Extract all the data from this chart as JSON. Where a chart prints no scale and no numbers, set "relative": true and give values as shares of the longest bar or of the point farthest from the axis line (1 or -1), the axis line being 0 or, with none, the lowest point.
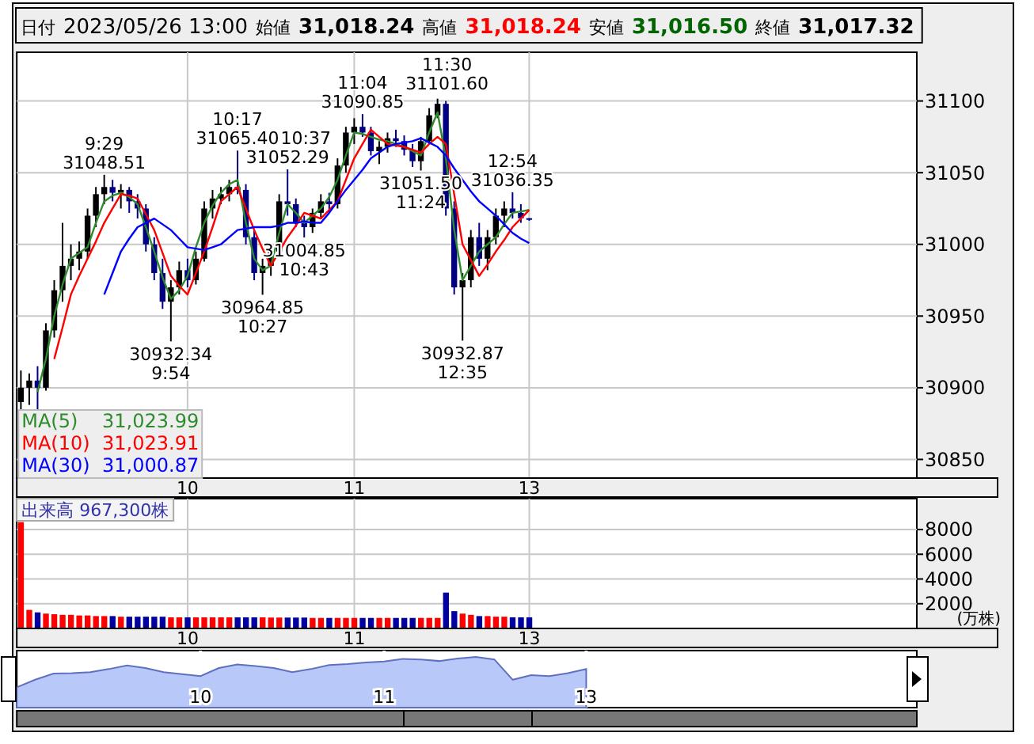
{
  "chart_data": [
    {
      "type": "candlestick",
      "categories": [
        null,
        null,
        null,
        null,
        null,
        null,
        null,
        null,
        null,
        null,
        null,
        null,
        null,
        null,
        null,
        null,
        null,
        null,
        null,
        null,
        "10",
        null,
        null,
        null,
        null,
        null,
        null,
        null,
        null,
        null,
        null,
        null,
        null,
        null,
        null,
        null,
        null,
        null,
        null,
        null,
        "11",
        null,
        null,
        null,
        null,
        null,
        null,
        null,
        null,
        null,
        null,
        null,
        null,
        null,
        null,
        null,
        null,
        null,
        null,
        null,
        null,
        "13"
      ],
      "ohlc": [
        [
          30890,
          30912,
          30885,
          30900
        ],
        [
          30900,
          30910,
          30888,
          30905
        ],
        [
          30905,
          30915,
          30884,
          30900
        ],
        [
          30900,
          30945,
          30898,
          30940
        ],
        [
          30940,
          30975,
          30935,
          30968
        ],
        [
          30968,
          31015,
          30960,
          30985
        ],
        [
          30985,
          31000,
          30975,
          30990
        ],
        [
          30990,
          31002,
          30982,
          30995
        ],
        [
          30995,
          31025,
          30990,
          31020
        ],
        [
          31020,
          31040,
          31012,
          31035
        ],
        [
          31035,
          31048.51,
          31028,
          31040
        ],
        [
          31040,
          31045,
          31030,
          31036
        ],
        [
          31036,
          31042,
          31025,
          31038
        ],
        [
          31038,
          31040,
          31022,
          31030
        ],
        [
          31030,
          31035,
          31018,
          31025
        ],
        [
          31025,
          31028,
          30995,
          31000
        ],
        [
          31000,
          31005,
          30975,
          30980
        ],
        [
          30980,
          30990,
          30955,
          30960
        ],
        [
          30960,
          30975,
          30932.34,
          30970
        ],
        [
          30970,
          30988,
          30965,
          30982
        ],
        [
          30982,
          30990,
          30970,
          30975
        ],
        [
          30975,
          30995,
          30972,
          30990
        ],
        [
          30990,
          31030,
          30988,
          31025
        ],
        [
          31025,
          31038,
          31018,
          31032
        ],
        [
          31032,
          31040,
          31028,
          31035
        ],
        [
          31035,
          31045,
          31030,
          31040
        ],
        [
          31040,
          31065.4,
          31035,
          31038
        ],
        [
          31038,
          31042,
          31000,
          31005
        ],
        [
          31005,
          31010,
          30975,
          30980
        ],
        [
          30980,
          30990,
          30964.85,
          30985
        ],
        [
          30985,
          31000,
          30978,
          30995
        ],
        [
          30995,
          31035,
          30992,
          31030
        ],
        [
          31030,
          31052.29,
          31020,
          31028
        ],
        [
          31028,
          31032,
          31012,
          31015
        ],
        [
          31015,
          31020,
          31004.85,
          31012
        ],
        [
          31012,
          31025,
          31008,
          31022
        ],
        [
          31022,
          31035,
          31018,
          31030
        ],
        [
          31030,
          31036,
          31022,
          31028
        ],
        [
          31028,
          31060,
          31025,
          31055
        ],
        [
          31055,
          31082,
          31050,
          31078
        ],
        [
          31078,
          31088,
          31070,
          31082
        ],
        [
          31082,
          31090.85,
          31075,
          31078
        ],
        [
          31078,
          31082,
          31062,
          31065
        ],
        [
          31065,
          31072,
          31056,
          31068
        ],
        [
          31068,
          31078,
          31064,
          31074
        ],
        [
          31074,
          31080,
          31068,
          31072
        ],
        [
          31072,
          31076,
          31062,
          31066
        ],
        [
          31066,
          31070,
          31054,
          31058
        ],
        [
          31058,
          31075,
          31051.5,
          31072
        ],
        [
          31072,
          31095,
          31070,
          31090
        ],
        [
          31090,
          31101.6,
          31088,
          31098
        ],
        [
          31098,
          31100,
          31020,
          31025
        ],
        [
          31025,
          31030,
          30965,
          30970
        ],
        [
          30970,
          30980,
          30932.87,
          30975
        ],
        [
          30975,
          31010,
          30970,
          31005
        ],
        [
          31005,
          31015,
          30985,
          30990
        ],
        [
          30990,
          31010,
          30982,
          31005
        ],
        [
          31005,
          31025,
          31000,
          31020
        ],
        [
          31020,
          31030,
          31012,
          31025
        ],
        [
          31025,
          31036.35,
          31018,
          31022
        ],
        [
          31022,
          31028,
          31015,
          31018.24
        ],
        [
          31018.24,
          31018.24,
          31016.5,
          31017.32
        ]
      ],
      "colors": [
        "#000000",
        "#000000",
        "#000080",
        "#000000",
        "#000000",
        "#000000",
        "#000000",
        "#000000",
        "#000000",
        "#000000",
        "#000000",
        "#000080",
        "#000000",
        "#000080",
        "#000080",
        "#000080",
        "#000080",
        "#000080",
        "#000000",
        "#000000",
        "#000080",
        "#000000",
        "#000000",
        "#000000",
        "#000000",
        "#000000",
        "#000080",
        "#000080",
        "#000080",
        "#000000",
        "#000000",
        "#000000",
        "#000080",
        "#000080",
        "#000080",
        "#000000",
        "#000000",
        "#000080",
        "#000000",
        "#000000",
        "#000000",
        "#000080",
        "#000080",
        "#000000",
        "#000000",
        "#000080",
        "#000080",
        "#000080",
        "#000000",
        "#000000",
        "#000000",
        "#000080",
        "#000080",
        "#000000",
        "#000000",
        "#000080",
        "#000000",
        "#000000",
        "#000000",
        "#000080",
        "#000080",
        "#000080"
      ],
      "series": [
        {
          "type": "line",
          "name": "MA(5)",
          "color": "#2e8b2e",
          "values": [
            null,
            null,
            30897,
            30920,
            30950,
            30972,
            30990,
            30994,
            30998,
            31015,
            31030,
            31034,
            31036,
            31033,
            31028,
            31012,
            30995,
            30977,
            30962,
            30968,
            30978,
            30998,
            31015,
            31027,
            31036,
            31042,
            31045,
            31015,
            30990,
            30982,
            30985,
            31008,
            31028,
            31022,
            31015,
            31020,
            31025,
            31033,
            31045,
            31062,
            31078,
            31077,
            31075,
            31073,
            31072,
            31070,
            31068,
            31065,
            31062,
            31078,
            31092,
            31060,
            31010,
            30975,
            30985,
            30995,
            31000,
            31005,
            31014,
            31022,
            31023,
            31023.99
          ]
        },
        {
          "type": "line",
          "name": "MA(10)",
          "color": "#ff0000",
          "values": [
            null,
            null,
            null,
            null,
            30920,
            30942,
            30965,
            30978,
            30990,
            31002,
            31015,
            31025,
            31035,
            31034,
            31032,
            31021,
            31010,
            30994,
            30978,
            30971,
            30965,
            30980,
            30995,
            31012,
            31030,
            31035,
            31040,
            31025,
            31010,
            30997,
            30985,
            30995,
            31005,
            31013,
            31022,
            31020,
            31018,
            31024,
            31030,
            31045,
            31060,
            31070,
            31080,
            31075,
            31070,
            31069,
            31068,
            31066,
            31064,
            31070,
            31075,
            31070,
            31035,
            31000,
            30989,
            30978,
            30986,
            30995,
            31003,
            31012,
            31018,
            31023.91
          ]
        },
        {
          "type": "line",
          "name": "MA(30)",
          "color": "#0000ff",
          "values": [
            null,
            null,
            null,
            null,
            null,
            null,
            null,
            null,
            null,
            null,
            30965,
            30980,
            30995,
            31004,
            31012,
            31015,
            31018,
            31014,
            31010,
            31004,
            30998,
            30997,
            30996,
            30998,
            31000,
            31005,
            31010,
            31011,
            31012,
            31012,
            31012,
            31013,
            31015,
            31015,
            31016,
            31015,
            31015,
            31022,
            31030,
            31038,
            31045,
            31052,
            31060,
            31064,
            31068,
            31070,
            31071,
            31072,
            31074,
            31071,
            31068,
            31062,
            31053,
            31045,
            31037,
            31030,
            31025,
            31020,
            31014,
            31008,
            31004,
            31000.87
          ]
        }
      ],
      "ylim": [
        30837,
        31134
      ],
      "yticks": [
        30850,
        30900,
        30950,
        31000,
        31050,
        31100
      ],
      "grid": true,
      "legend": "bottom left",
      "annotations": [
        "日付",
        "2023/05/26 13:00",
        "始値",
        "31,018.24",
        "高値",
        "31,018.24",
        "安値",
        "31,016.50",
        "終値",
        "31,017.32",
        "31,023.99",
        "31,023.91",
        "31,000.87",
        {
          "text": "9:29\n31048.51",
          "y": 31048.51
        },
        {
          "text": "10:17\n31065.40",
          "y": 31065.4
        },
        {
          "text": "10:37\n31052.29",
          "y": 31052.29
        },
        {
          "text": "11:04\n31090.85",
          "y": 31090.85
        },
        {
          "text": "11:30\n31101.60",
          "y": 31101.6
        },
        {
          "text": "12:54\n31036.35",
          "y": 31036.35
        },
        {
          "text": "30932.34\n9:54",
          "y": 30932.34
        },
        {
          "text": "30964.85\n10:27",
          "y": 30964.85
        },
        {
          "text": "31004.85\n10:43",
          "y": 31004.85
        },
        {
          "text": "31051.50\n11:24",
          "y": 31051.5
        },
        {
          "text": "30932.87\n12:35",
          "y": 30932.87
        }
      ]
    },
    {
      "type": "bar",
      "title": "出来高 967,300株",
      "ylabel": "(万株)",
      "categories": [
        null,
        null,
        null,
        null,
        null,
        null,
        null,
        null,
        null,
        null,
        null,
        null,
        null,
        null,
        null,
        null,
        null,
        null,
        null,
        null,
        "10",
        null,
        null,
        null,
        null,
        null,
        null,
        null,
        null,
        null,
        null,
        null,
        null,
        null,
        null,
        null,
        null,
        null,
        null,
        null,
        "11",
        null,
        null,
        null,
        null,
        null,
        null,
        null,
        null,
        null,
        null,
        null,
        null,
        null,
        null,
        null,
        null,
        null,
        null,
        null,
        null,
        "13",
        null,
        null,
        null,
        null,
        null,
        null,
        null,
        null,
        null,
        null,
        null,
        null,
        null,
        null,
        null,
        null,
        null,
        null,
        null,
        null,
        null,
        null,
        null,
        null,
        null,
        null,
        null,
        null,
        null,
        null,
        null,
        null,
        null,
        null,
        null,
        null,
        null,
        null,
        null,
        null,
        null,
        null,
        null,
        null,
        null,
        null
      ],
      "values": [
        8600,
        1500,
        1300,
        1200,
        1150,
        1100,
        1100,
        1050,
        1050,
        1000,
        1000,
        1000,
        950,
        950,
        950,
        950,
        950,
        950,
        900,
        900,
        900,
        900,
        900,
        900,
        900,
        900,
        900,
        900,
        900,
        900,
        880,
        880,
        880,
        880,
        880,
        850,
        850,
        850,
        850,
        850,
        850,
        850,
        850,
        850,
        850,
        850,
        850,
        850,
        850,
        850,
        850,
        2900,
        1400,
        1200,
        1100,
        1000,
        1000,
        950,
        950,
        900,
        900,
        900,
        null,
        null,
        null,
        null,
        null,
        null,
        null,
        null,
        null,
        null,
        null,
        null,
        null,
        null,
        null,
        null,
        null,
        null,
        null,
        null,
        null,
        null,
        null,
        null,
        null,
        null,
        null,
        null,
        null,
        null,
        null,
        null,
        null,
        null,
        null,
        null,
        null,
        null,
        null,
        null,
        null,
        null,
        null,
        null,
        null,
        null
      ],
      "colors": [
        "#ff0000",
        "#ff0000",
        "#0000a0",
        "#ff0000",
        "#ff0000",
        "#ff0000",
        "#ff0000",
        "#ff0000",
        "#ff0000",
        "#ff0000",
        "#ff0000",
        "#0000a0",
        "#ff0000",
        "#0000a0",
        "#0000a0",
        "#0000a0",
        "#0000a0",
        "#0000a0",
        "#ff0000",
        "#ff0000",
        "#0000a0",
        "#ff0000",
        "#ff0000",
        "#ff0000",
        "#ff0000",
        "#ff0000",
        "#0000a0",
        "#0000a0",
        "#0000a0",
        "#ff0000",
        "#ff0000",
        "#ff0000",
        "#0000a0",
        "#0000a0",
        "#0000a0",
        "#ff0000",
        "#ff0000",
        "#0000a0",
        "#ff0000",
        "#ff0000",
        "#ff0000",
        "#0000a0",
        "#0000a0",
        "#ff0000",
        "#ff0000",
        "#0000a0",
        "#0000a0",
        "#0000a0",
        "#ff0000",
        "#ff0000",
        "#ff0000",
        "#0000a0",
        "#0000a0",
        "#ff0000",
        "#ff0000",
        "#0000a0",
        "#ff0000",
        "#ff0000",
        "#ff0000",
        "#0000a0",
        "#0000a0",
        "#0000a0",
        null,
        null,
        null,
        null,
        null,
        null,
        null,
        null,
        null,
        null,
        null,
        null,
        null,
        null,
        null,
        null,
        null,
        null,
        null,
        null,
        null,
        null,
        null,
        null,
        null,
        null,
        null,
        null,
        null,
        null,
        null,
        null,
        null,
        null,
        null,
        null,
        null,
        null,
        null,
        null,
        null,
        null,
        null,
        null,
        null,
        null
      ],
      "ylim": [
        0,
        10500
      ],
      "yticks": [
        2000,
        4000,
        6000,
        8000
      ],
      "grid": true
    },
    {
      "type": "area",
      "relative": true,
      "color": "#b8c8f8",
      "categories": [
        null,
        null,
        null,
        null,
        null,
        null,
        null,
        null,
        null,
        null,
        "10",
        null,
        null,
        null,
        null,
        null,
        null,
        null,
        null,
        null,
        "11",
        null,
        null,
        null,
        null,
        null,
        null,
        null,
        null,
        null,
        null,
        "13",
        null,
        null,
        null,
        null,
        null,
        null,
        null,
        null,
        null,
        null,
        null,
        null,
        null,
        null,
        null,
        null,
        null,
        null
      ],
      "values": [
        0.4,
        0.55,
        0.67,
        0.68,
        0.7,
        0.76,
        0.83,
        0.78,
        0.7,
        0.66,
        0.62,
        0.78,
        0.85,
        0.82,
        0.78,
        0.7,
        0.76,
        0.84,
        0.86,
        0.89,
        0.91,
        0.96,
        0.95,
        0.92,
        0.97,
        1,
        0.95,
        0.55,
        0.64,
        0.62,
        0.68,
        0.76,
        null,
        null,
        null,
        null,
        null,
        null,
        null,
        null,
        null,
        null,
        null,
        null,
        null,
        null,
        null,
        null,
        null,
        null
      ],
      "grid": "x"
    }
  ]
}
